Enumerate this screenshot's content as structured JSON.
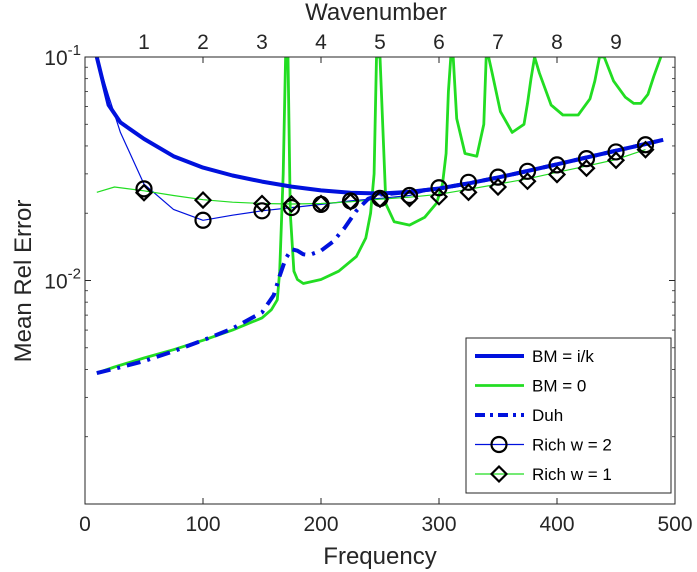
{
  "chart_data": {
    "type": "line",
    "xlabel": "Frequency",
    "ylabel": "Mean Rel Error",
    "top_xlabel": "Wavenumber",
    "yscale": "log",
    "xlim": [
      0,
      500
    ],
    "ylim": [
      0.001,
      0.1
    ],
    "grid": false,
    "legend_position": "bottom-right",
    "x_ticks": [
      0,
      100,
      200,
      300,
      400,
      500
    ],
    "x_tick_labels": [
      "0",
      "100",
      "200",
      "300",
      "400",
      "500"
    ],
    "top_ticks": [
      50,
      100,
      150,
      200,
      250,
      300,
      350,
      400,
      450
    ],
    "top_tick_labels": [
      "1",
      "2",
      "3",
      "4",
      "5",
      "6",
      "7",
      "8",
      "9"
    ],
    "y_ticks": [
      0.1,
      0.01
    ],
    "y_tick_labels": [
      {
        "base": "10",
        "exp": "-1"
      },
      {
        "base": "10",
        "exp": "-2"
      }
    ],
    "series": [
      {
        "name": "BM = i/k",
        "color": "#0011dd",
        "width": 4,
        "dash": "",
        "marker": "",
        "x": [
          10,
          20,
          30,
          50,
          75,
          100,
          125,
          150,
          175,
          200,
          225,
          250,
          275,
          300,
          325,
          350,
          375,
          400,
          425,
          450,
          475,
          490
        ],
        "y": [
          0.1,
          0.061,
          0.051,
          0.043,
          0.036,
          0.032,
          0.0295,
          0.0277,
          0.0263,
          0.0253,
          0.0247,
          0.0245,
          0.0249,
          0.0258,
          0.0272,
          0.0289,
          0.0309,
          0.0331,
          0.0355,
          0.0381,
          0.0408,
          0.0426
        ]
      },
      {
        "name": "BM = 0",
        "color": "#22dd22",
        "width": 2.8,
        "dash": "",
        "marker": "",
        "x": [
          10,
          25,
          50,
          75,
          100,
          125,
          150,
          158,
          163,
          165,
          168,
          170,
          172,
          174,
          177,
          180,
          185,
          200,
          215,
          230,
          238,
          242,
          245,
          247,
          250,
          255,
          262,
          275,
          288,
          298,
          303,
          306,
          308,
          310,
          312,
          315,
          322,
          332,
          338,
          340,
          342,
          345,
          352,
          362,
          372,
          375,
          378,
          381,
          385,
          395,
          405,
          418,
          428,
          432,
          436,
          440,
          448,
          458,
          465,
          471,
          477,
          482,
          488
        ],
        "y": [
          0.00385,
          0.0041,
          0.0045,
          0.0049,
          0.0054,
          0.006,
          0.0068,
          0.0074,
          0.0082,
          0.011,
          0.03,
          0.1,
          0.1,
          0.02,
          0.011,
          0.0101,
          0.0097,
          0.0101,
          0.011,
          0.0128,
          0.0155,
          0.02,
          0.03,
          0.1,
          0.1,
          0.022,
          0.0183,
          0.0177,
          0.0192,
          0.0222,
          0.027,
          0.037,
          0.07,
          0.1,
          0.1,
          0.053,
          0.037,
          0.036,
          0.05,
          0.1,
          0.1,
          0.085,
          0.057,
          0.046,
          0.05,
          0.062,
          0.08,
          0.1,
          0.085,
          0.061,
          0.055,
          0.055,
          0.065,
          0.078,
          0.1,
          0.1,
          0.078,
          0.066,
          0.062,
          0.062,
          0.068,
          0.082,
          0.1
        ]
      },
      {
        "name": "Duh",
        "color": "#0011dd",
        "width": 4,
        "dash": "14,7,3,7",
        "marker": "",
        "x": [
          10,
          25,
          50,
          75,
          100,
          125,
          150,
          160,
          165,
          170,
          175,
          180,
          185,
          190,
          200,
          210,
          220,
          230,
          240,
          250,
          275,
          300,
          325,
          350,
          375,
          400,
          425,
          450,
          475,
          490
        ],
        "y": [
          0.00385,
          0.00403,
          0.00436,
          0.00482,
          0.0054,
          0.0061,
          0.0072,
          0.0086,
          0.0105,
          0.0125,
          0.0138,
          0.0136,
          0.0131,
          0.013,
          0.0136,
          0.0149,
          0.0172,
          0.0205,
          0.0232,
          0.0242,
          0.0249,
          0.0258,
          0.0272,
          0.0289,
          0.0309,
          0.0331,
          0.0355,
          0.0381,
          0.0408,
          0.0426
        ]
      },
      {
        "name": "Rich w = 2",
        "color": "#0011dd",
        "width": 1.2,
        "dash": "",
        "marker": "circle",
        "x": [
          10,
          20,
          30,
          50,
          75,
          100,
          125,
          150,
          175,
          200,
          225,
          250,
          275,
          300,
          325,
          350,
          375,
          400,
          425,
          450,
          475
        ],
        "y": [
          0.1,
          0.067,
          0.046,
          0.027,
          0.0208,
          0.0186,
          0.0196,
          0.0205,
          0.0212,
          0.0219,
          0.0227,
          0.0233,
          0.024,
          0.026,
          0.0275,
          0.029,
          0.0308,
          0.0329,
          0.0351,
          0.0376,
          0.0405
        ],
        "marker_x": [
          50,
          100,
          150,
          175,
          200,
          225,
          250,
          275,
          300,
          325,
          350,
          375,
          400,
          425,
          450,
          475
        ],
        "marker_y": [
          0.0257,
          0.0186,
          0.0205,
          0.0212,
          0.0219,
          0.0227,
          0.0233,
          0.024,
          0.026,
          0.0275,
          0.029,
          0.0308,
          0.0329,
          0.0351,
          0.0376,
          0.0405
        ]
      },
      {
        "name": "Rich w = 1",
        "color": "#22dd22",
        "width": 1.2,
        "dash": "",
        "marker": "diamond",
        "x": [
          10,
          25,
          50,
          75,
          100,
          125,
          150,
          175,
          200,
          225,
          250,
          275,
          300,
          325,
          350,
          375,
          400,
          425,
          450,
          475
        ],
        "y": [
          0.0248,
          0.0262,
          0.0252,
          0.024,
          0.023,
          0.0224,
          0.0221,
          0.022,
          0.0221,
          0.0225,
          0.0231,
          0.0236,
          0.0243,
          0.0256,
          0.027,
          0.0285,
          0.0305,
          0.0325,
          0.0348,
          0.0385
        ],
        "marker_x": [
          50,
          100,
          150,
          175,
          200,
          225,
          250,
          275,
          300,
          325,
          350,
          375,
          400,
          425,
          450,
          475
        ],
        "marker_y": [
          0.0247,
          0.0229,
          0.0221,
          0.022,
          0.0221,
          0.0225,
          0.0231,
          0.0233,
          0.0237,
          0.0248,
          0.0262,
          0.0278,
          0.0298,
          0.0318,
          0.0345,
          0.0385
        ]
      }
    ]
  }
}
